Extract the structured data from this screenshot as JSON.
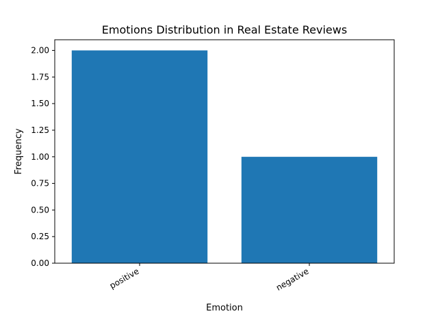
{
  "chart_data": {
    "type": "bar",
    "title": "Emotions Distribution in Real Estate Reviews",
    "xlabel": "Emotion",
    "ylabel": "Frequency",
    "categories": [
      "positive",
      "negative"
    ],
    "values": [
      2,
      1
    ],
    "ylim": [
      0,
      2.1
    ],
    "yticks": [
      "0.00",
      "0.25",
      "0.50",
      "0.75",
      "1.00",
      "1.25",
      "1.50",
      "1.75",
      "2.00"
    ],
    "bar_color": "#1f77b4",
    "grid": false,
    "legend": "none"
  }
}
